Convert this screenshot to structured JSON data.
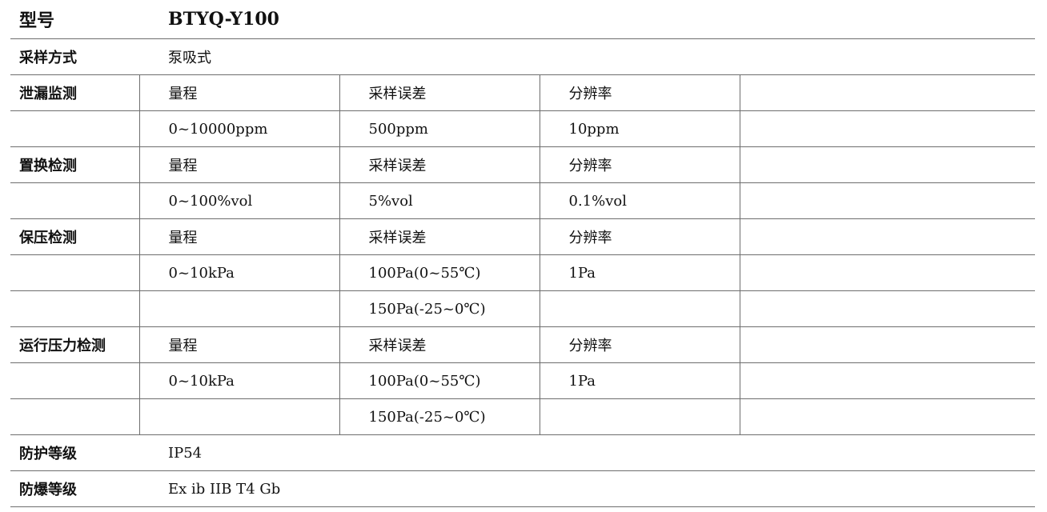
{
  "model": {
    "label": "型号",
    "value": "BTYQ-Y100"
  },
  "sampling_method": {
    "label": "采样方式",
    "value": "泵吸式"
  },
  "grid_rows": [
    {
      "label": "泄漏监测",
      "cells": [
        "量程",
        "采样误差",
        "分辨率",
        ""
      ]
    },
    {
      "label": "",
      "cells": [
        "0~10000ppm",
        "500ppm",
        "10ppm",
        ""
      ]
    },
    {
      "label": "置换检测",
      "cells": [
        "量程",
        "采样误差",
        "分辨率",
        ""
      ]
    },
    {
      "label": "",
      "cells": [
        "0~100%vol",
        "5%vol",
        "0.1%vol",
        ""
      ]
    },
    {
      "label": "保压检测",
      "cells": [
        "量程",
        "采样误差",
        "分辨率",
        ""
      ]
    },
    {
      "label": "",
      "cells": [
        "0~10kPa",
        "100Pa(0~55℃)",
        "1Pa",
        ""
      ]
    },
    {
      "label": "",
      "cells": [
        "",
        "150Pa(-25~0℃)",
        "",
        ""
      ]
    },
    {
      "label": "运行压力检测",
      "cells": [
        "量程",
        "采样误差",
        "分辨率",
        ""
      ]
    },
    {
      "label": "",
      "cells": [
        "0~10kPa",
        "100Pa(0~55℃)",
        "1Pa",
        ""
      ]
    },
    {
      "label": "",
      "cells": [
        "",
        "150Pa(-25~0℃)",
        "",
        ""
      ]
    }
  ],
  "protection": {
    "label": "防护等级",
    "value": "IP54"
  },
  "explosion_proof": {
    "label": "防爆等级",
    "value": "Ex ib IIB T4 Gb"
  }
}
